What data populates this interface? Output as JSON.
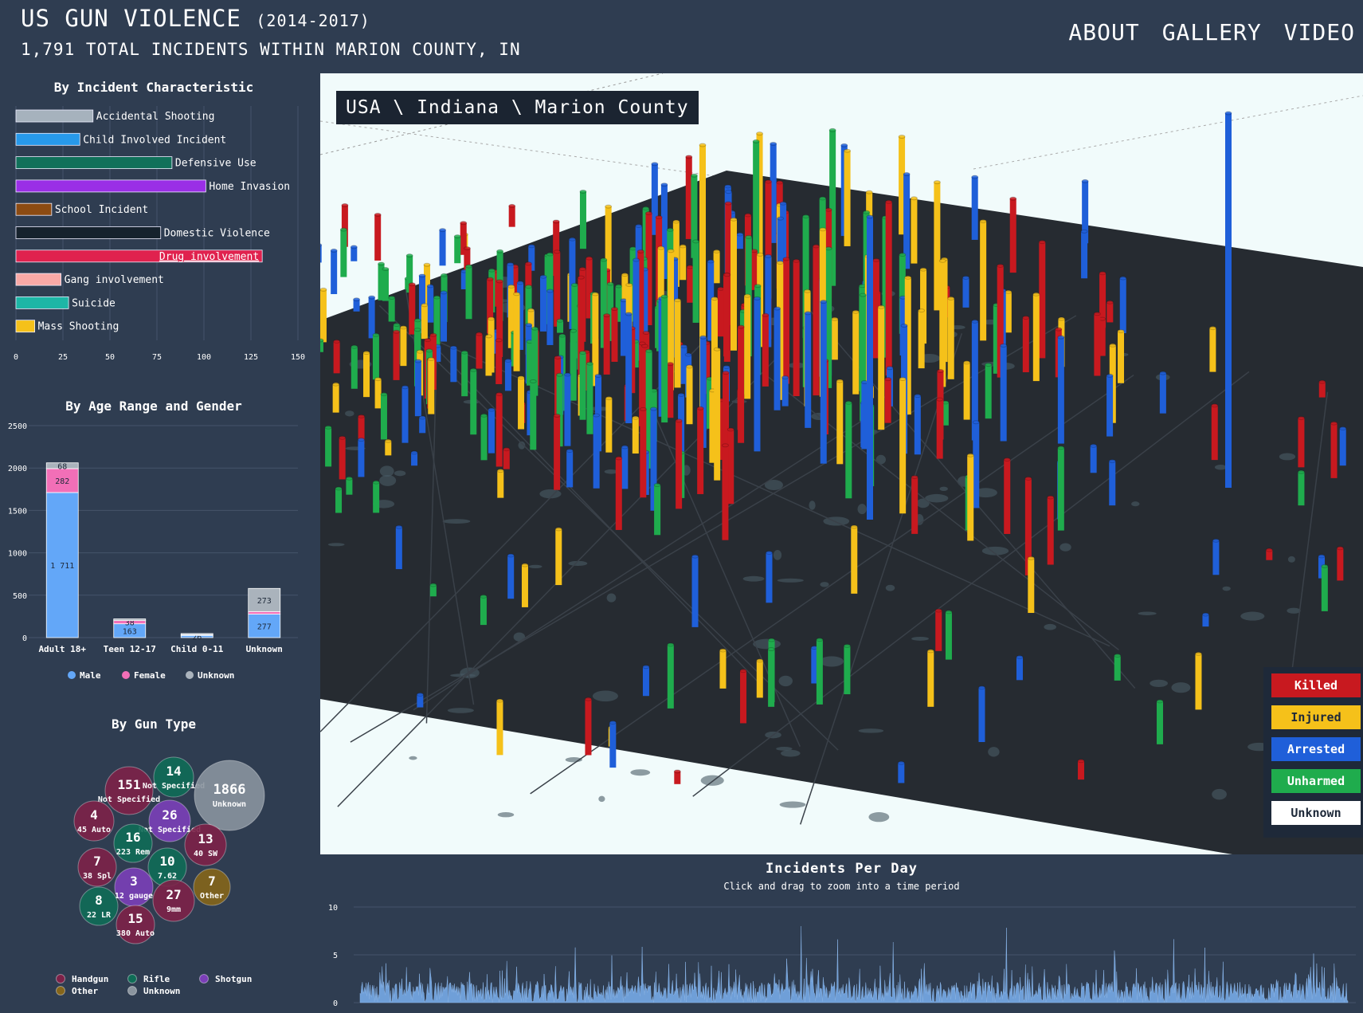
{
  "header": {
    "title": "US GUN VIOLENCE",
    "years": "(2014-2017)",
    "subtitle": "1,791 TOTAL INCIDENTS WITHIN MARION COUNTY, IN"
  },
  "nav": {
    "about": "ABOUT",
    "gallery": "GALLERY",
    "video": "VIDEO"
  },
  "breadcrumb": "USA \\ Indiana \\ Marion County",
  "map_legend": [
    {
      "label": "Killed",
      "color": "#c8191f",
      "text": "#ffffff"
    },
    {
      "label": "Injured",
      "color": "#f5c11a",
      "text": "#1e2939"
    },
    {
      "label": "Arrested",
      "color": "#1f5fd9",
      "text": "#ffffff"
    },
    {
      "label": "Unharmed",
      "color": "#1fac4d",
      "text": "#ffffff"
    },
    {
      "label": "Unknown",
      "color": "#ffffff",
      "text": "#1e2939"
    }
  ],
  "incident_characteristic": {
    "title": "By Incident Characteristic",
    "ticks": [
      "0",
      "25",
      "50",
      "75",
      "100",
      "125",
      "150"
    ],
    "items": [
      {
        "label": "Accidental Shooting",
        "value": 41,
        "color": "#a6b2bd"
      },
      {
        "label": "Child Involved Incident",
        "value": 34,
        "color": "#2799ea"
      },
      {
        "label": "Defensive Use",
        "value": 83,
        "color": "#11715a"
      },
      {
        "label": "Home Invasion",
        "value": 101,
        "color": "#9a2fe6"
      },
      {
        "label": "School Incident",
        "value": 19,
        "color": "#8c4b12"
      },
      {
        "label": "Domestic Violence",
        "value": 77,
        "color": "#16222d"
      },
      {
        "label": "Drug involvement",
        "value": 131,
        "color": "#e0224e"
      },
      {
        "label": "Gang involvement",
        "value": 24,
        "color": "#f9a9a6"
      },
      {
        "label": "Suicide",
        "value": 28,
        "color": "#1db6a6"
      },
      {
        "label": "Mass Shooting",
        "value": 10,
        "color": "#f5c11a"
      }
    ]
  },
  "age_gender": {
    "title": "By Age Range and Gender",
    "yticks": [
      "0",
      "500",
      "1000",
      "1500",
      "2000",
      "2500"
    ],
    "categories": [
      "Adult 18+",
      "Teen 12-17",
      "Child 0-11",
      "Unknown"
    ],
    "series": [
      {
        "name": "Male",
        "color": "#63a7f8",
        "values": [
          1711,
          163,
          26,
          277
        ],
        "labels": [
          "1 711",
          "163",
          "26",
          "277"
        ]
      },
      {
        "name": "Female",
        "color": "#f26fb7",
        "values": [
          282,
          38,
          8,
          30
        ],
        "labels": [
          "282",
          "38",
          "",
          ""
        ]
      },
      {
        "name": "Unknown",
        "color": "#aab3bc",
        "values": [
          68,
          20,
          14,
          273
        ],
        "labels": [
          "68",
          "",
          "",
          "273"
        ]
      }
    ]
  },
  "gun_type": {
    "title": "By Gun Type",
    "bubbles": [
      {
        "value": "151",
        "label": "Not Specified",
        "type": "Handgun"
      },
      {
        "value": "14",
        "label": "Not Specified",
        "type": "Rifle"
      },
      {
        "value": "1866",
        "label": "Unknown",
        "type": "Unknown"
      },
      {
        "value": "4",
        "label": "45 Auto",
        "type": "Handgun"
      },
      {
        "value": "26",
        "label": "Not Specified",
        "type": "Shotgun"
      },
      {
        "value": "16",
        "label": "223 Rem",
        "type": "Rifle"
      },
      {
        "value": "13",
        "label": "40 SW",
        "type": "Handgun"
      },
      {
        "value": "7",
        "label": "38 Spl",
        "type": "Handgun"
      },
      {
        "value": "10",
        "label": "7.62",
        "type": "Rifle"
      },
      {
        "value": "3",
        "label": "12 gauge",
        "type": "Shotgun"
      },
      {
        "value": "7",
        "label": "Other",
        "type": "Other"
      },
      {
        "value": "8",
        "label": "22 LR",
        "type": "Rifle"
      },
      {
        "value": "27",
        "label": "9mm",
        "type": "Handgun"
      },
      {
        "value": "15",
        "label": "380 Auto",
        "type": "Handgun"
      }
    ],
    "legend": [
      {
        "name": "Handgun",
        "color": "#7d2148"
      },
      {
        "name": "Rifle",
        "color": "#0f6c56"
      },
      {
        "name": "Shotgun",
        "color": "#7b3fb8"
      },
      {
        "name": "Other",
        "color": "#85651a"
      },
      {
        "name": "Unknown",
        "color": "#8a949e"
      }
    ]
  },
  "incidents_per_day": {
    "title": "Incidents Per Day",
    "subtitle": "Click and drag to zoom into a time period",
    "yticks": [
      "0",
      "5",
      "10"
    ]
  }
}
